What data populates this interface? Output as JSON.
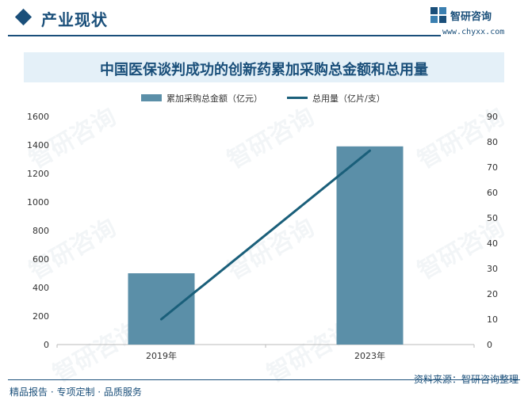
{
  "header": {
    "section_title": "产业现状",
    "brand_name": "智研咨询",
    "brand_url": "www.chyxx.com"
  },
  "footer": {
    "left": "精品报告 · 专项定制 · 品质服务",
    "source": "资料来源：智研咨询整理"
  },
  "watermark": "智研咨询",
  "colors": {
    "bar": "#5b8fa8",
    "line": "#1a5f7a",
    "brand": "#1a4f7a",
    "title_band": "#e4f0f8"
  },
  "chart_data": {
    "type": "bar",
    "title": "中国医保谈判成功的创新药累加采购总金额和总用量",
    "categories": [
      "2019年",
      "2023年"
    ],
    "series": [
      {
        "name": "累加采购总金额（亿元）",
        "type": "bar",
        "axis": "left",
        "values": [
          500,
          1390
        ]
      },
      {
        "name": "总用量（亿片/支）",
        "type": "line",
        "axis": "right",
        "values": [
          10,
          76.5
        ]
      }
    ],
    "y_left": {
      "min": 0,
      "max": 1600,
      "ticks": [
        0,
        200,
        400,
        600,
        800,
        1000,
        1200,
        1400,
        1600
      ]
    },
    "y_right": {
      "min": 0,
      "max": 90,
      "ticks": [
        0,
        10,
        20,
        30,
        40,
        50,
        60,
        70,
        80,
        90
      ]
    },
    "legend_position": "top-center",
    "grid": false
  }
}
